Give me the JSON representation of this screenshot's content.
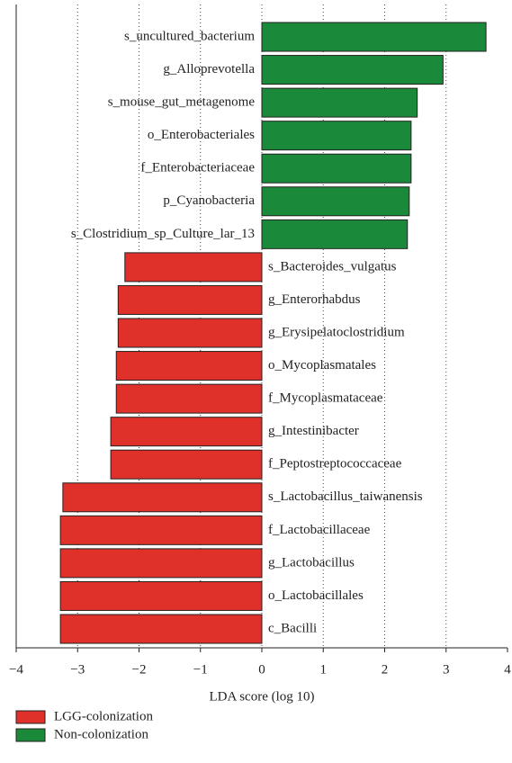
{
  "chart_data": {
    "type": "bar",
    "orientation": "horizontal",
    "x_label": "LDA score (log 10)",
    "categories": [
      "s_uncultured_bacterium",
      "g_Alloprevotella",
      "s_mouse_gut_metagenome",
      "o_Enterobacteriales",
      "f_Enterobacteriaceae",
      "p_Cyanobacteria",
      "s_Clostridium_sp_Culture_lar_13",
      "s_Bacteroides_vulgatus",
      "g_Enterorhabdus",
      "g_Erysipelatoclostridium",
      "o_Mycoplasmatales",
      "f_Mycoplasmataceae",
      "g_Intestinibacter",
      "f_Peptostreptococcaceae",
      "s_Lactobacillus_taiwanensis",
      "f_Lactobacillaceae",
      "g_Lactobacillus",
      "o_Lactobacillales",
      "c_Bacilli"
    ],
    "series": [
      {
        "name": "LGG-colonization",
        "color": "#e0302a",
        "values": [
          null,
          null,
          null,
          null,
          null,
          null,
          null,
          -2.23,
          -2.34,
          -2.34,
          -2.37,
          -2.37,
          -2.46,
          -2.46,
          -3.24,
          -3.28,
          -3.28,
          -3.28,
          -3.28
        ]
      },
      {
        "name": "Non-colonization",
        "color": "#1a8a3a",
        "values": [
          3.65,
          2.95,
          2.53,
          2.43,
          2.43,
          2.4,
          2.37,
          null,
          null,
          null,
          null,
          null,
          null,
          null,
          null,
          null,
          null,
          null,
          null
        ]
      }
    ],
    "xlim": [
      -4,
      4
    ],
    "xticks": [
      {
        "value": -4,
        "label": "−4"
      },
      {
        "value": -3,
        "label": "−3"
      },
      {
        "value": -2,
        "label": "−2"
      },
      {
        "value": -1,
        "label": "−1"
      },
      0,
      1,
      2,
      3,
      4
    ],
    "grid": true
  }
}
